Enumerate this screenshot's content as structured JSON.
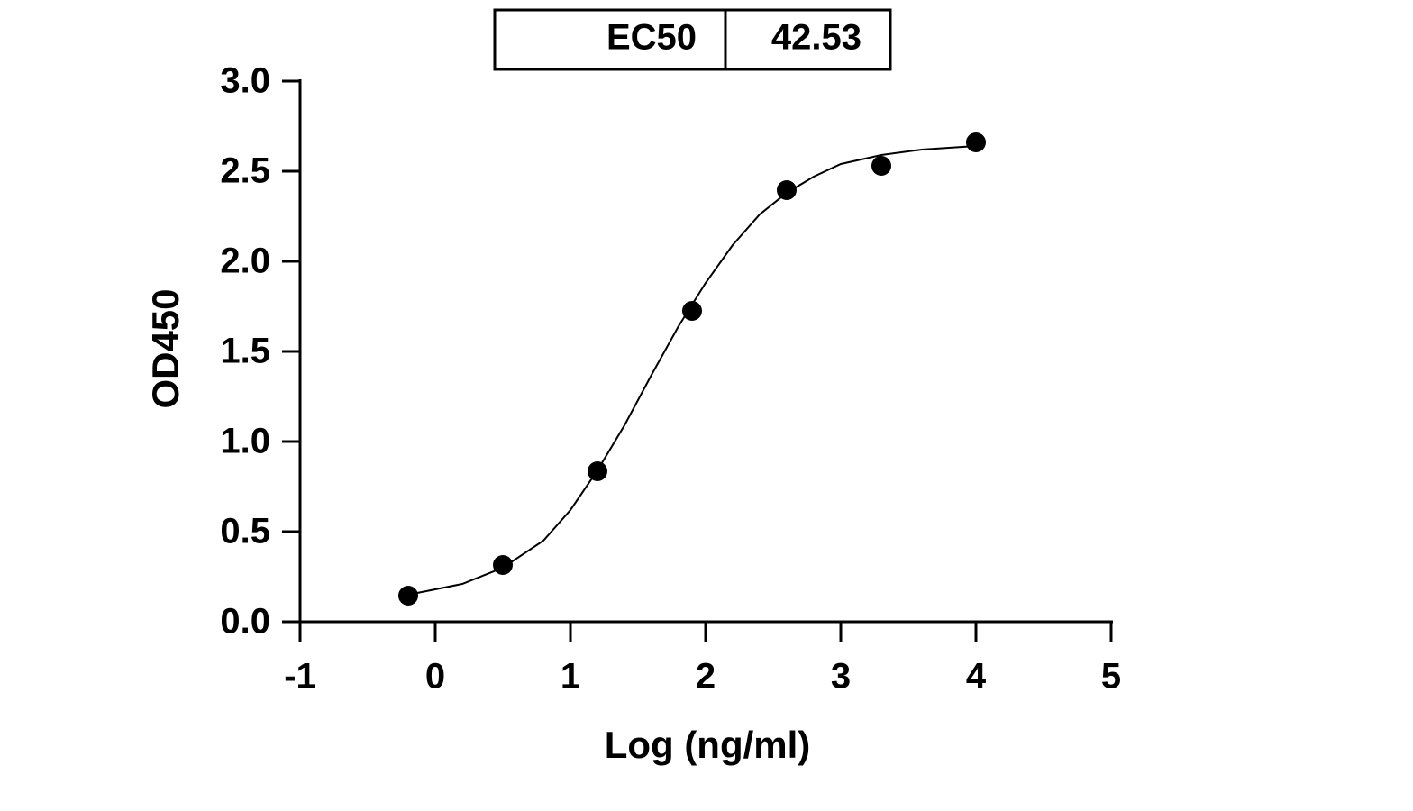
{
  "chart_data": {
    "type": "scatter",
    "table": [
      [
        "EC50",
        42.53
      ]
    ],
    "xlabel": "Log (ng/ml)",
    "ylabel": "OD450",
    "x": [
      -0.2,
      0.5,
      1.2,
      1.9,
      2.6,
      3.3,
      4.0
    ],
    "values": [
      0.145,
      0.315,
      0.835,
      1.725,
      2.395,
      2.53,
      2.66
    ],
    "color": "#000000",
    "curve": {
      "x": [
        -0.2,
        0.2,
        0.5,
        0.8,
        1.0,
        1.2,
        1.4,
        1.6,
        1.8,
        2.0,
        2.2,
        2.4,
        2.6,
        2.8,
        3.0,
        3.3,
        3.6,
        4.0
      ],
      "values": [
        0.15,
        0.21,
        0.3,
        0.45,
        0.62,
        0.84,
        1.09,
        1.37,
        1.64,
        1.88,
        2.09,
        2.26,
        2.38,
        2.47,
        2.54,
        2.59,
        2.62,
        2.64
      ]
    },
    "xlim": [
      -1,
      5
    ],
    "xticks": [
      -1,
      0,
      1,
      2,
      3,
      4,
      5
    ],
    "ylim": [
      0,
      3
    ],
    "yticks": [
      {
        "value": 0,
        "label": "0.0"
      },
      0.5,
      {
        "value": 1,
        "label": "1.0"
      },
      1.5,
      {
        "value": 2,
        "label": "2.0"
      },
      2.5,
      {
        "value": 3,
        "label": "3.0"
      }
    ]
  }
}
